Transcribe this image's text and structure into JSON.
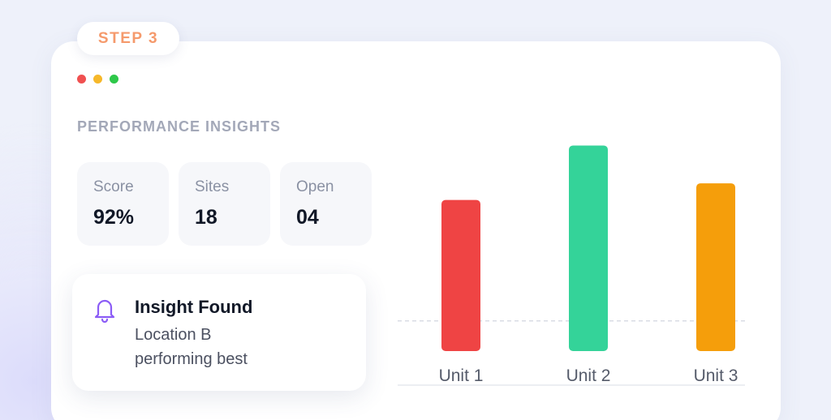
{
  "step_badge": {
    "label": "STEP 3",
    "color": "#f59a6c"
  },
  "window_controls": [
    {
      "name": "close",
      "color": "#f05050"
    },
    {
      "name": "minimize",
      "color": "#f6b82a"
    },
    {
      "name": "maximize",
      "color": "#2ec84a"
    }
  ],
  "section": {
    "title": "PERFORMANCE INSIGHTS"
  },
  "stats": [
    {
      "label": "Score",
      "value": "92%"
    },
    {
      "label": "Sites",
      "value": "18"
    },
    {
      "label": "Open",
      "value": "04"
    }
  ],
  "notification": {
    "icon": "bell-icon",
    "icon_color": "#8b5cf6",
    "title": "Insight Found",
    "body_line1": "Location B",
    "body_line2": "performing best"
  },
  "chart_data": {
    "type": "bar",
    "categories": [
      "Unit 1",
      "Unit 2",
      "Unit 3"
    ],
    "values": [
      100,
      136,
      111
    ],
    "colors": [
      "#ef4444",
      "#34d399",
      "#f59e0b"
    ],
    "ylim": [
      0,
      140
    ],
    "reference_line": 20,
    "grid": false,
    "title": "",
    "xlabel": "",
    "ylabel": ""
  }
}
